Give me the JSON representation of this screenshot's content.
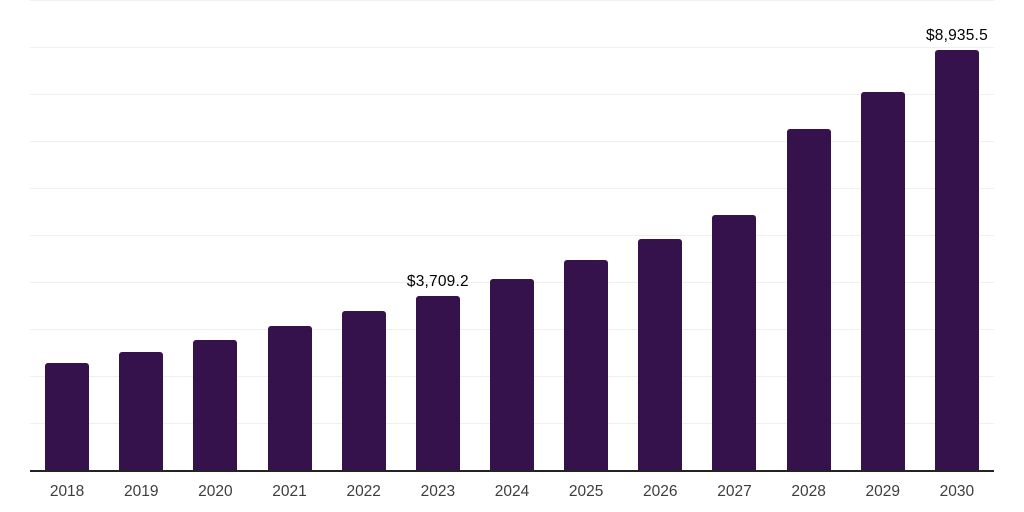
{
  "chart_data": {
    "type": "bar",
    "title": "",
    "xlabel": "",
    "ylabel": "",
    "categories": [
      "2018",
      "2019",
      "2020",
      "2021",
      "2022",
      "2023",
      "2024",
      "2025",
      "2026",
      "2027",
      "2028",
      "2029",
      "2030"
    ],
    "values": [
      2270,
      2510,
      2765,
      3070,
      3375,
      3709.2,
      4055,
      4470,
      4915,
      5430,
      7255,
      8050,
      8935.5
    ],
    "data_labels": [
      "",
      "",
      "",
      "",
      "",
      "$3,709.2",
      "",
      "",
      "",
      "",
      "",
      "",
      "$8,935.5"
    ],
    "ylim": [
      0,
      10000
    ],
    "gridline_step": 1000,
    "grid": true,
    "legend": "none",
    "colors": {
      "bar": "#35124B",
      "gridline": "#efefef",
      "axis_line": "#232323",
      "tick_label": "#3d3d3d",
      "value_label": "#000000",
      "background": "#ffffff"
    }
  }
}
